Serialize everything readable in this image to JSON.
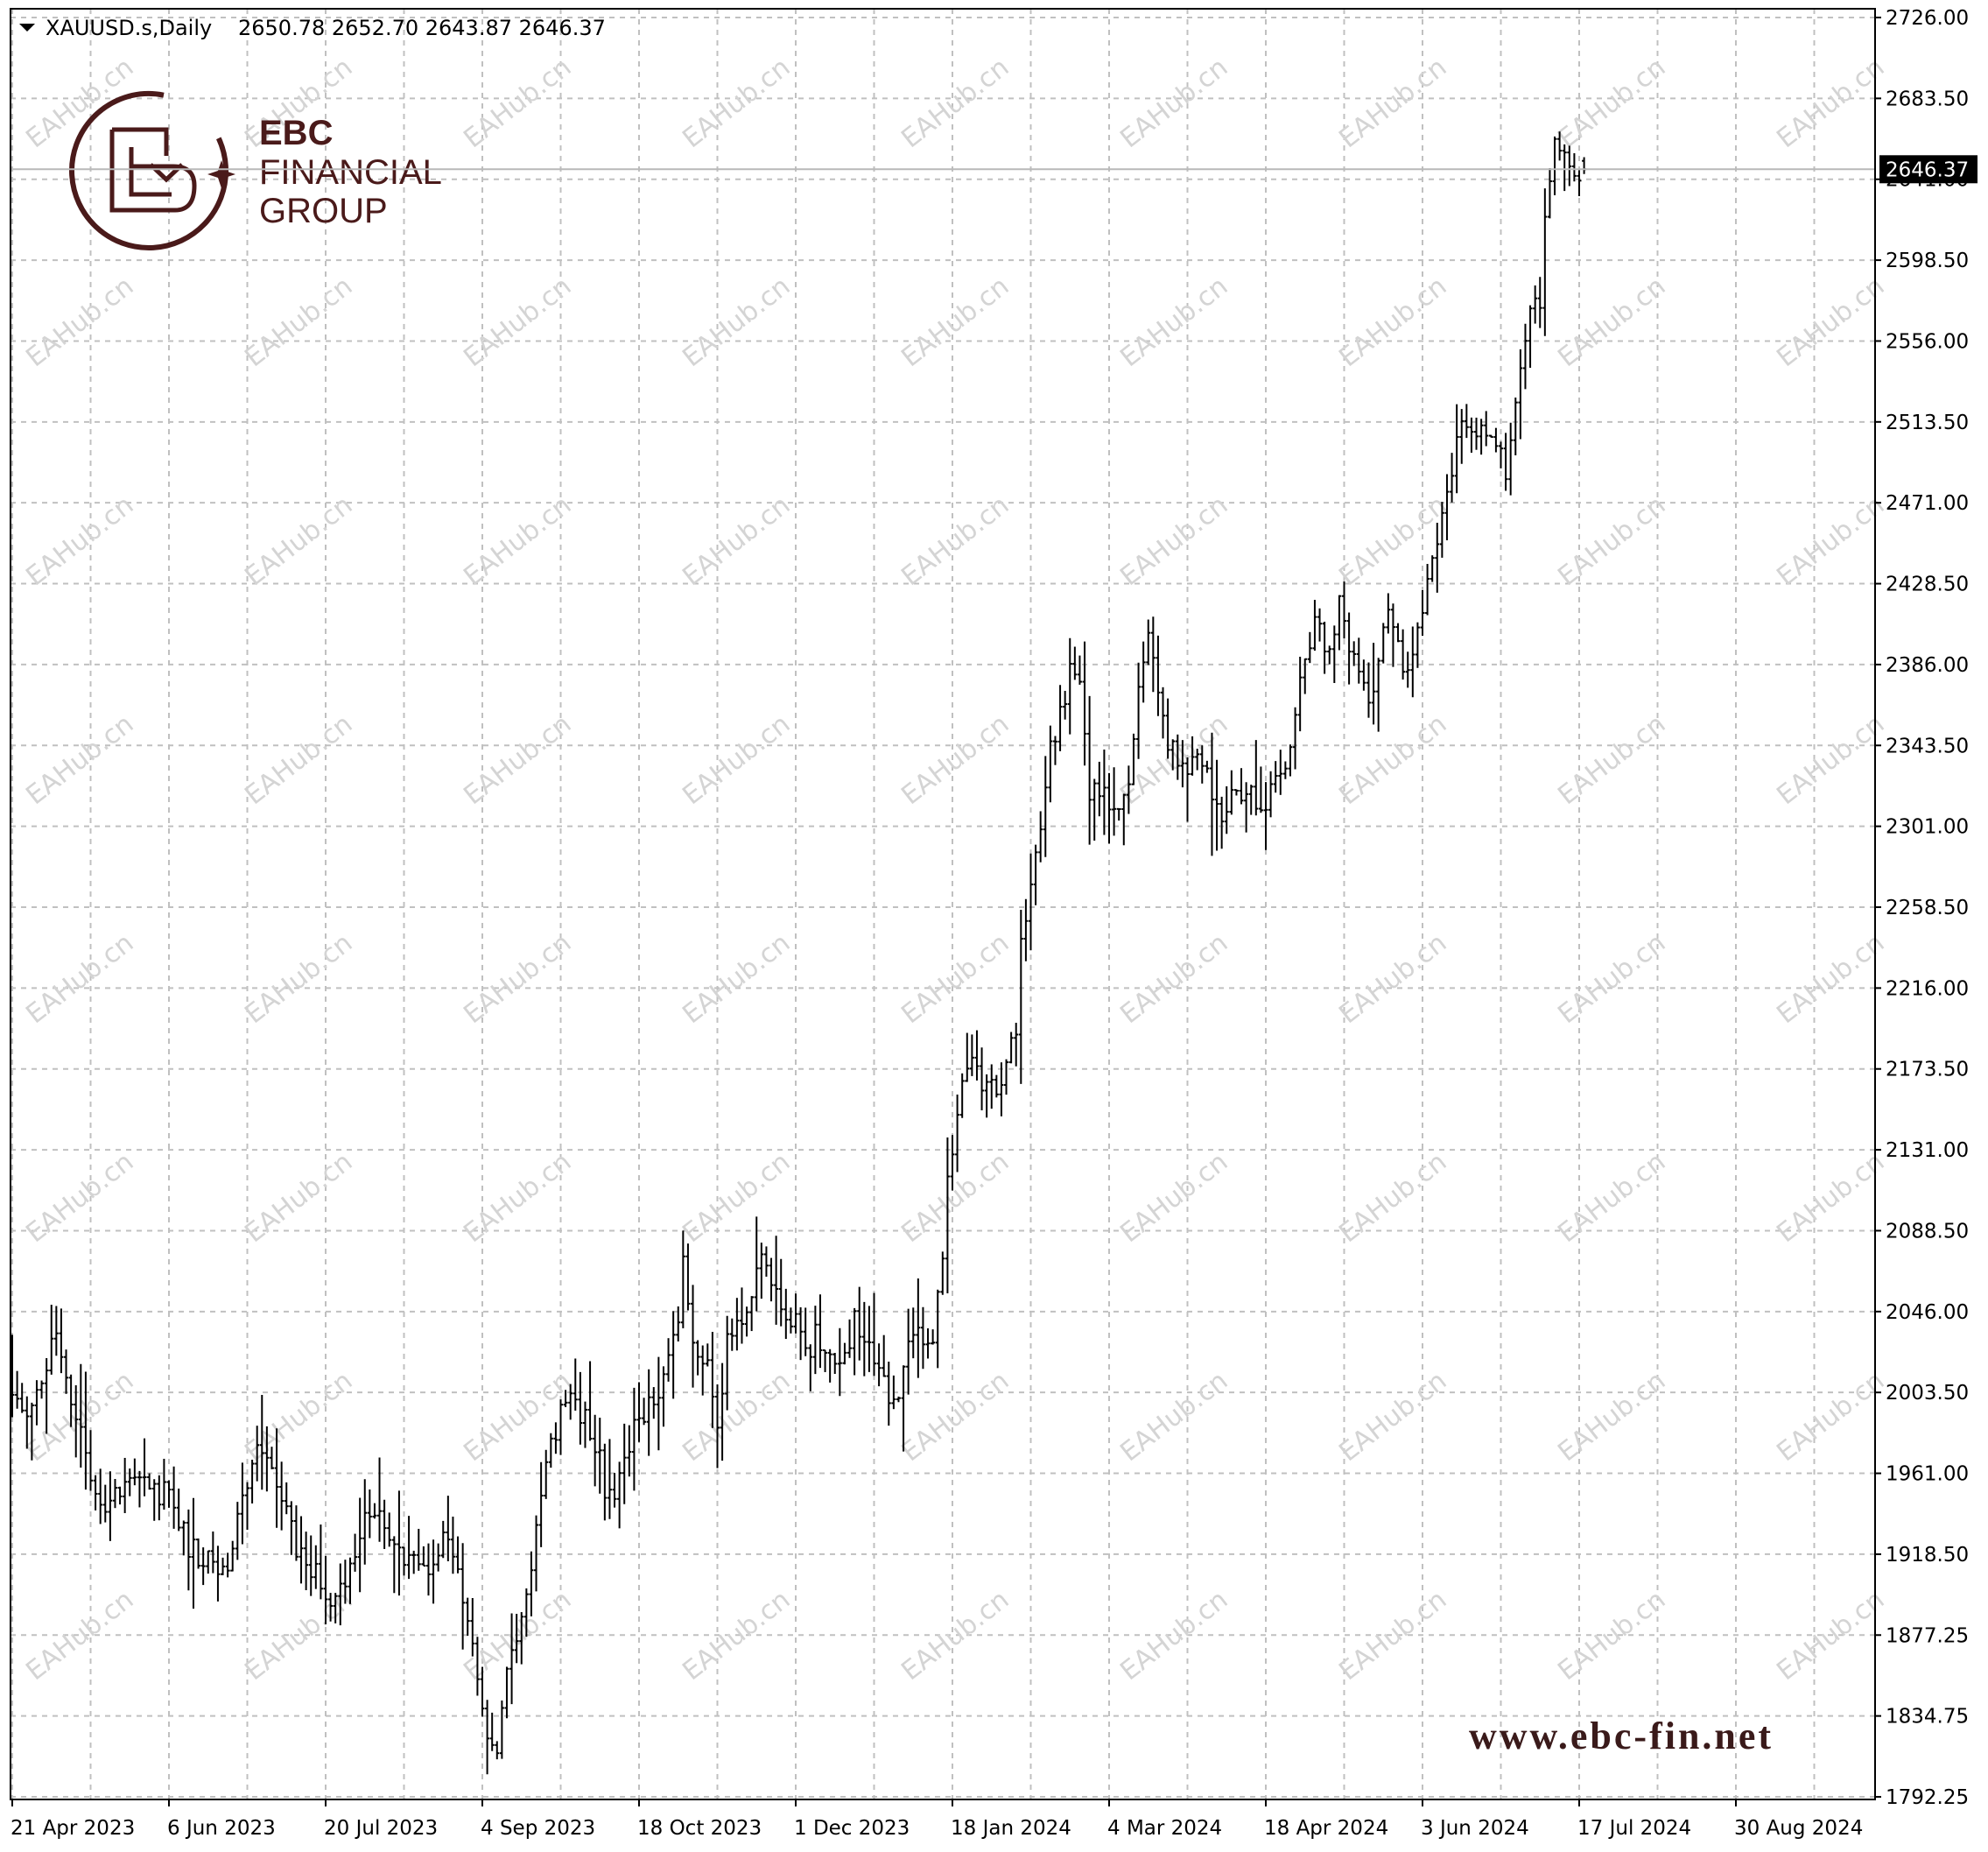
{
  "header": {
    "symbol": "XAUUSD.s,Daily",
    "ohlc": "2650.78 2652.70 2643.87 2646.37"
  },
  "logo": {
    "line1": "EBC",
    "line2": "FINANCIAL",
    "line3": "GROUP"
  },
  "url_text": "www.ebc-fin.net",
  "watermark_text": "EAHub.cn",
  "current_price_label": "2646.37",
  "chart_data": {
    "type": "ohlc-bar",
    "symbol": "XAUUSD.s",
    "timeframe": "Daily",
    "last_bar": {
      "open": 2650.78,
      "high": 2652.7,
      "low": 2643.87,
      "close": 2646.37
    },
    "current_price": 2646.37,
    "ylim": [
      1792.25,
      2726.0
    ],
    "y_ticks": [
      "2726.00",
      "2683.50",
      "2641.00",
      "2598.50",
      "2556.00",
      "2513.50",
      "2471.00",
      "2428.50",
      "2386.00",
      "2343.50",
      "2301.00",
      "2258.50",
      "2216.00",
      "2173.50",
      "2131.00",
      "2088.50",
      "2046.00",
      "2003.50",
      "1961.00",
      "1918.50",
      "1877.25",
      "1834.75",
      "1792.25"
    ],
    "x_ticks": [
      "21 Apr 2023",
      "6 Jun 2023",
      "20 Jul 2023",
      "4 Sep 2023",
      "18 Oct 2023",
      "1 Dec 2023",
      "18 Jan 2024",
      "4 Mar 2024",
      "18 Apr 2024",
      "3 Jun 2024",
      "17 Jul 2024",
      "30 Aug 2024"
    ],
    "grid": true,
    "bars_per_x_tick": 32,
    "anchors": [
      [
        0,
        2000
      ],
      [
        3,
        1990
      ],
      [
        6,
        2005
      ],
      [
        9,
        2040
      ],
      [
        11,
        2010
      ],
      [
        14,
        1985
      ],
      [
        16,
        1960
      ],
      [
        20,
        1945
      ],
      [
        24,
        1965
      ],
      [
        28,
        1955
      ],
      [
        32,
        1950
      ],
      [
        36,
        1925
      ],
      [
        40,
        1915
      ],
      [
        44,
        1905
      ],
      [
        46,
        1940
      ],
      [
        48,
        1960
      ],
      [
        50,
        1975
      ],
      [
        54,
        1955
      ],
      [
        58,
        1925
      ],
      [
        62,
        1910
      ],
      [
        66,
        1895
      ],
      [
        70,
        1920
      ],
      [
        72,
        1935
      ],
      [
        74,
        1945
      ],
      [
        77,
        1925
      ],
      [
        80,
        1920
      ],
      [
        84,
        1910
      ],
      [
        88,
        1930
      ],
      [
        91,
        1905
      ],
      [
        93,
        1880
      ],
      [
        95,
        1860
      ],
      [
        97,
        1825
      ],
      [
        99,
        1820
      ],
      [
        101,
        1860
      ],
      [
        103,
        1880
      ],
      [
        106,
        1915
      ],
      [
        108,
        1950
      ],
      [
        110,
        1975
      ],
      [
        113,
        2000
      ],
      [
        116,
        1995
      ],
      [
        119,
        1980
      ],
      [
        121,
        1955
      ],
      [
        123,
        1950
      ],
      [
        125,
        1975
      ],
      [
        128,
        1990
      ],
      [
        131,
        2000
      ],
      [
        134,
        2025
      ],
      [
        136,
        2045
      ],
      [
        137,
        2075
      ],
      [
        139,
        2035
      ],
      [
        142,
        2015
      ],
      [
        144,
        1990
      ],
      [
        146,
        2030
      ],
      [
        148,
        2040
      ],
      [
        150,
        2045
      ],
      [
        152,
        2065
      ],
      [
        154,
        2075
      ],
      [
        156,
        2055
      ],
      [
        158,
        2045
      ],
      [
        160,
        2040
      ],
      [
        162,
        2025
      ],
      [
        164,
        2035
      ],
      [
        166,
        2020
      ],
      [
        168,
        2025
      ],
      [
        170,
        2020
      ],
      [
        172,
        2045
      ],
      [
        174,
        2035
      ],
      [
        176,
        2025
      ],
      [
        178,
        2015
      ],
      [
        180,
        1995
      ],
      [
        182,
        2020
      ],
      [
        184,
        2030
      ],
      [
        186,
        2035
      ],
      [
        188,
        2030
      ],
      [
        190,
        2080
      ],
      [
        191,
        2120
      ],
      [
        193,
        2145
      ],
      [
        195,
        2180
      ],
      [
        198,
        2165
      ],
      [
        201,
        2165
      ],
      [
        203,
        2175
      ],
      [
        205,
        2195
      ],
      [
        206,
        2240
      ],
      [
        208,
        2265
      ],
      [
        210,
        2300
      ],
      [
        212,
        2340
      ],
      [
        214,
        2360
      ],
      [
        216,
        2385
      ],
      [
        218,
        2375
      ],
      [
        220,
        2320
      ],
      [
        223,
        2315
      ],
      [
        226,
        2305
      ],
      [
        228,
        2330
      ],
      [
        230,
        2375
      ],
      [
        232,
        2400
      ],
      [
        233,
        2390
      ],
      [
        235,
        2355
      ],
      [
        238,
        2335
      ],
      [
        241,
        2335
      ],
      [
        243,
        2340
      ],
      [
        245,
        2315
      ],
      [
        247,
        2310
      ],
      [
        249,
        2315
      ],
      [
        251,
        2320
      ],
      [
        253,
        2325
      ],
      [
        255,
        2310
      ],
      [
        257,
        2320
      ],
      [
        259,
        2330
      ],
      [
        261,
        2340
      ],
      [
        263,
        2380
      ],
      [
        265,
        2400
      ],
      [
        267,
        2410
      ],
      [
        269,
        2390
      ],
      [
        271,
        2420
      ],
      [
        273,
        2400
      ],
      [
        275,
        2385
      ],
      [
        277,
        2365
      ],
      [
        279,
        2390
      ],
      [
        281,
        2415
      ],
      [
        283,
        2395
      ],
      [
        285,
        2380
      ],
      [
        287,
        2410
      ],
      [
        289,
        2430
      ],
      [
        291,
        2445
      ],
      [
        293,
        2475
      ],
      [
        295,
        2505
      ],
      [
        297,
        2515
      ],
      [
        299,
        2505
      ],
      [
        301,
        2505
      ],
      [
        303,
        2500
      ],
      [
        305,
        2490
      ],
      [
        306,
        2510
      ],
      [
        308,
        2545
      ],
      [
        310,
        2580
      ],
      [
        312,
        2570
      ],
      [
        313,
        2620
      ],
      [
        315,
        2665
      ],
      [
        317,
        2655
      ],
      [
        319,
        2645
      ],
      [
        321,
        2646
      ]
    ]
  }
}
